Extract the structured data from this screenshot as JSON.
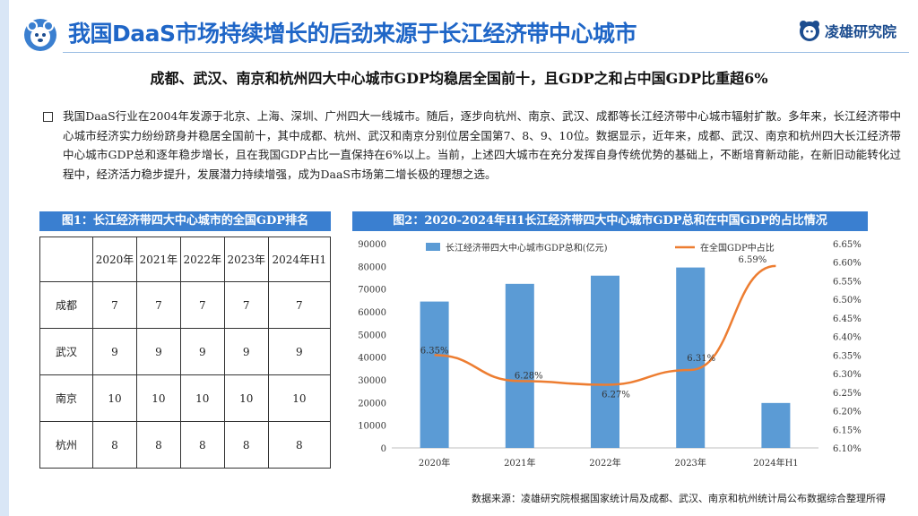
{
  "header": {
    "title": "我国DaaS市场持续增长的后劲来源于长江经济带中心城市",
    "brand": "凌雄研究院"
  },
  "subtitle": "成都、武汉、南京和杭州四大中心城市GDP均稳居全国前十，且GDP之和占中国GDP比重超6%",
  "paragraph": "我国DaaS行业在2004年发源于北京、上海、深圳、广州四大一线城市。随后，逐步向杭州、南京、武汉、成都等长江经济带中心城市辐射扩散。多年来，长江经济带中心城市经济实力纷纷跻身并稳居全国前十，其中成都、杭州、武汉和南京分别位居全国第7、8、9、10位。数据显示，近年来，成都、武汉、南京和杭州四大长江经济带中心城市GDP总和逐年稳步增长，且在我国GDP占比一直保持在6%以上。当前，上述四大城市在充分发挥自身传统优势的基础上，不断培育新动能，在新旧动能转化过程中，经济活力稳步提升，发展潜力持续增强，成为DaaS市场第二增长极的理想之选。",
  "figure1": {
    "title": "图1：长江经济带四大中心城市的全国GDP排名",
    "columns": [
      "",
      "2020年",
      "2021年",
      "2022年",
      "2023年",
      "2024年H1"
    ],
    "rows": [
      {
        "city": "成都",
        "values": [
          "7",
          "7",
          "7",
          "7",
          "7"
        ]
      },
      {
        "city": "武汉",
        "values": [
          "9",
          "9",
          "9",
          "9",
          "9"
        ]
      },
      {
        "city": "南京",
        "values": [
          "10",
          "10",
          "10",
          "10",
          "10"
        ]
      },
      {
        "city": "杭州",
        "values": [
          "8",
          "8",
          "8",
          "8",
          "8"
        ]
      }
    ]
  },
  "figure2": {
    "title": "图2：2020-2024年H1长江经济带四大中心城市GDP总和在中国GDP的占比情况"
  },
  "chart_data": {
    "type": "bar",
    "categories": [
      "2020年",
      "2021年",
      "2022年",
      "2023年",
      "2024年H1"
    ],
    "series": [
      {
        "name": "长江经济带四大中心城市GDP总和(亿元)",
        "type": "bar",
        "axis": "left",
        "color": "#5b9bd5",
        "values": [
          64500,
          72300,
          75900,
          79500,
          19800
        ]
      },
      {
        "name": "在全国GDP中占比",
        "type": "line",
        "axis": "right",
        "color": "#ed7d31",
        "values": [
          6.35,
          6.28,
          6.27,
          6.31,
          6.59
        ],
        "labels": [
          "6.35%",
          "6.28%",
          "6.27%",
          "6.31%",
          "6.59%"
        ]
      }
    ],
    "y_left": {
      "min": 0,
      "max": 90000,
      "step": 10000,
      "ticks": [
        "0",
        "10000",
        "20000",
        "30000",
        "40000",
        "50000",
        "60000",
        "70000",
        "80000",
        "90000"
      ]
    },
    "y_right": {
      "min": 6.1,
      "max": 6.65,
      "step": 0.05,
      "ticks": [
        "6.10%",
        "6.15%",
        "6.20%",
        "6.25%",
        "6.30%",
        "6.35%",
        "6.40%",
        "6.45%",
        "6.50%",
        "6.55%",
        "6.60%",
        "6.65%"
      ]
    },
    "legend": "top",
    "grid": false
  },
  "source": "数据来源：凌雄研究院根据国家统计局及成都、武汉、南京和杭州统计局公布数据综合整理所得",
  "colors": {
    "accent": "#1f66c7",
    "header_bg": "#3a7fd0",
    "bar": "#5b9bd5",
    "line": "#ed7d31"
  }
}
